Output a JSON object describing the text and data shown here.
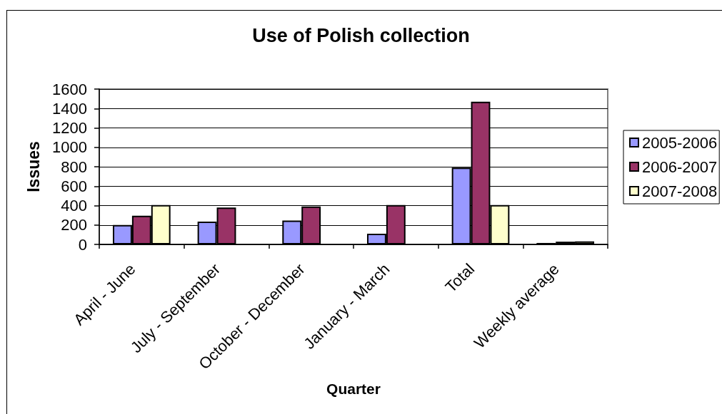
{
  "chart_data": {
    "type": "bar",
    "title": "Use of Polish collection",
    "xlabel": "Quarter",
    "ylabel": "Issues",
    "categories": [
      "April - June",
      "July - September",
      "October - December",
      "January - March",
      "Total",
      "Weekly average"
    ],
    "series": [
      {
        "name": "2005-2006",
        "color": "#9999ff",
        "values": [
          200,
          235,
          245,
          110,
          790,
          15
        ]
      },
      {
        "name": "2006-2007",
        "color": "#993366",
        "values": [
          295,
          380,
          390,
          405,
          1470,
          28
        ]
      },
      {
        "name": "2007-2008",
        "color": "#ffffcc",
        "values": [
          405,
          null,
          null,
          null,
          405,
          31
        ]
      }
    ],
    "ylim": [
      0,
      1600
    ],
    "yticks": [
      0,
      200,
      400,
      600,
      800,
      1000,
      1200,
      1400,
      1600
    ],
    "grid": "y",
    "legend": "right"
  }
}
